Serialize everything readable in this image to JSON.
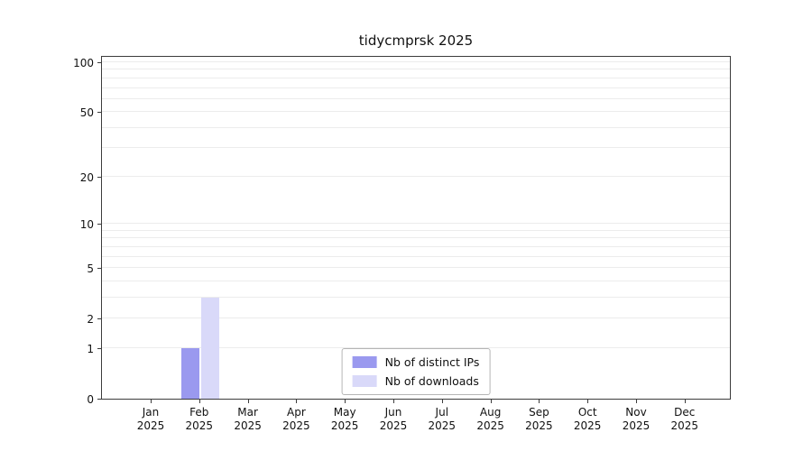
{
  "title": "tidycmprsk 2025",
  "colors": {
    "distinct_ips": "#9a99ef",
    "downloads": "#d9d9f9",
    "gridline_minor": "#ececec",
    "gridline_major": "#dddddd",
    "axis": "#3c3c3c",
    "background": "#ffffff"
  },
  "legend": {
    "entries": [
      {
        "label": "Nb of distinct IPs",
        "color": "#9a99ef"
      },
      {
        "label": "Nb of downloads",
        "color": "#d9d9f9"
      }
    ]
  },
  "chart_data": {
    "type": "bar",
    "title": "tidycmprsk 2025",
    "categories": [
      "Jan 2025",
      "Feb 2025",
      "Mar 2025",
      "Apr 2025",
      "May 2025",
      "Jun 2025",
      "Jul 2025",
      "Aug 2025",
      "Sep 2025",
      "Oct 2025",
      "Nov 2025",
      "Dec 2025"
    ],
    "series": [
      {
        "name": "Nb of distinct IPs",
        "values": [
          0,
          1,
          0,
          0,
          0,
          0,
          0,
          0,
          0,
          0,
          0,
          0
        ]
      },
      {
        "name": "Nb of downloads",
        "values": [
          0,
          3,
          0,
          0,
          0,
          0,
          0,
          0,
          0,
          0,
          0,
          0
        ]
      }
    ],
    "xlabel": "",
    "ylabel": "",
    "y_axis": {
      "scale": "log1p",
      "ticks": [
        0,
        1,
        2,
        5,
        10,
        20,
        50,
        100
      ],
      "max": 100
    },
    "grid": "horizontal-minor-log",
    "legend_position": "lower center"
  }
}
